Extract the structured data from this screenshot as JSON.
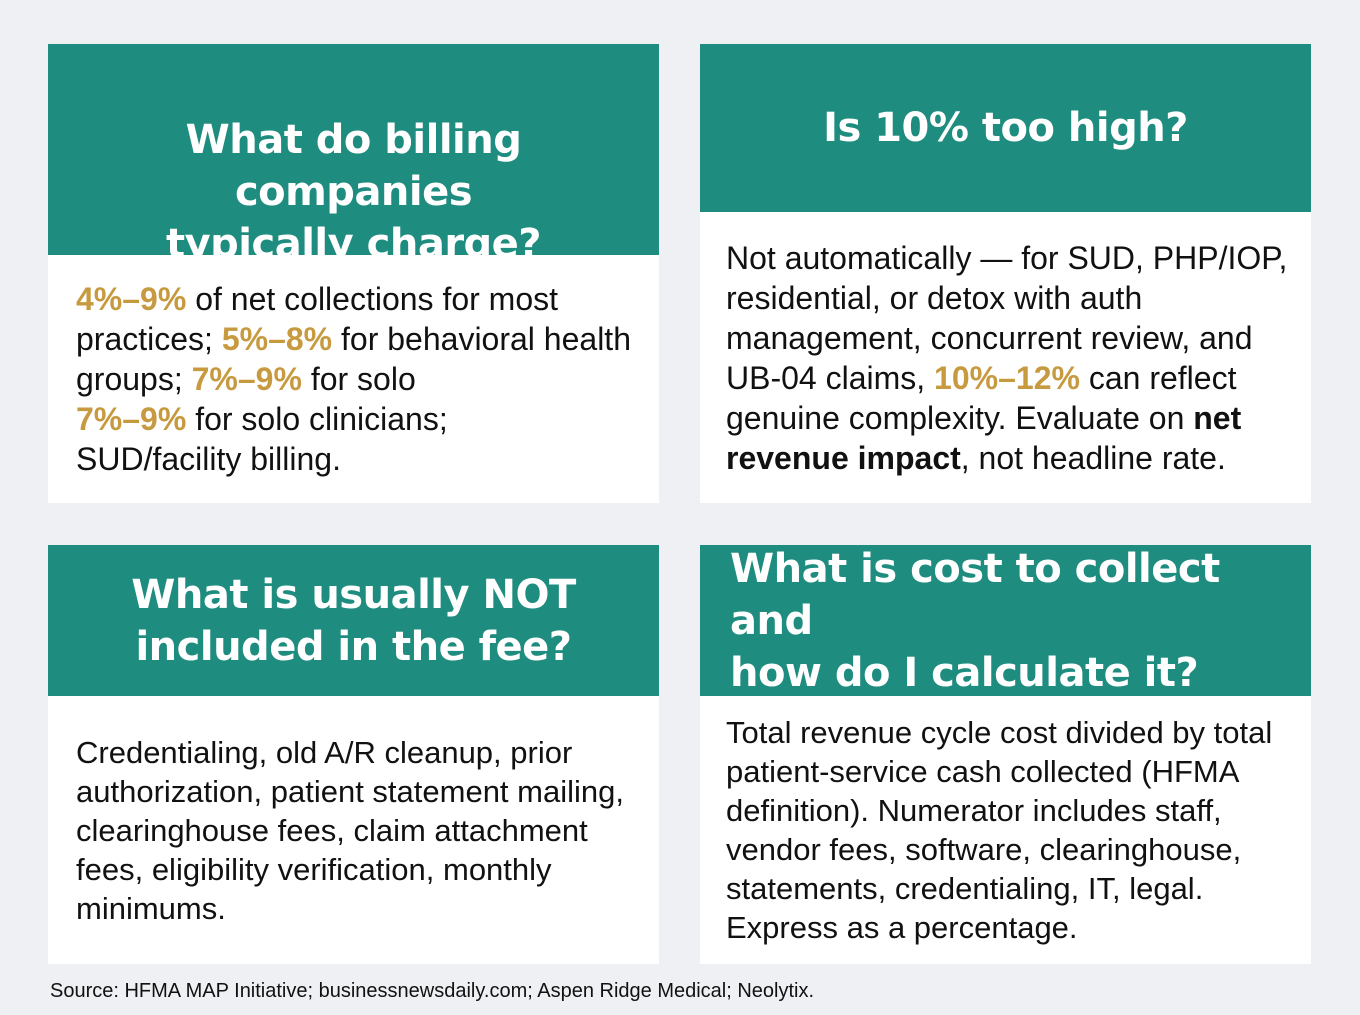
{
  "cards": [
    {
      "title_lines": [
        "What do billing companies",
        "typically charge?"
      ],
      "body": {
        "hl_1": "4%–9%",
        "t_1": " of net collections for most practices; ",
        "hl_2": "5%–8%",
        "t_2": " for behavioral health groups; ",
        "hl_3": "7%–9%",
        "t_3": " for solo",
        "hl_4": "7%–9%",
        "t_4": " for solo clinicians;",
        "t_5": "SUD/facility billing."
      }
    },
    {
      "title_lines": [
        "Is 10% too high?"
      ],
      "body": {
        "t_1": "Not automatically — for SUD, PHP/IOP, residential, or detox with auth management, concurrent review, and UB-04 claims, ",
        "hl_1": "10%–12%",
        "t_2": " can reflect genuine complexity. Evaluate on ",
        "strong_1": "net revenue impact",
        "t_3": ", not headline rate."
      }
    },
    {
      "title_lines": [
        "What is usually NOT",
        "included in the fee?"
      ],
      "body": {
        "t_1": "Credentialing, old A/R cleanup, prior authorization, patient statement mailing, clearinghouse fees, claim attachment fees, eligibility verification, monthly minimums."
      }
    },
    {
      "title_lines": [
        "What is cost to collect and",
        "how do I calculate it?"
      ],
      "body": {
        "t_1": "Total revenue cycle cost divided by total patient-service cash collected (HFMA definition). Numerator includes staff, vendor fees, software, clearinghouse, statements, credentialing, IT, legal. Express as a percentage."
      }
    }
  ],
  "source": "Source: HFMA MAP Initiative; businessnewsdaily.com; Aspen Ridge Medical; Neolytix.",
  "colors": {
    "header_bg": "#1e8c7e",
    "highlight": "#c79a3f",
    "page_bg": "#eef0f3",
    "card_bg": "#ffffff"
  }
}
